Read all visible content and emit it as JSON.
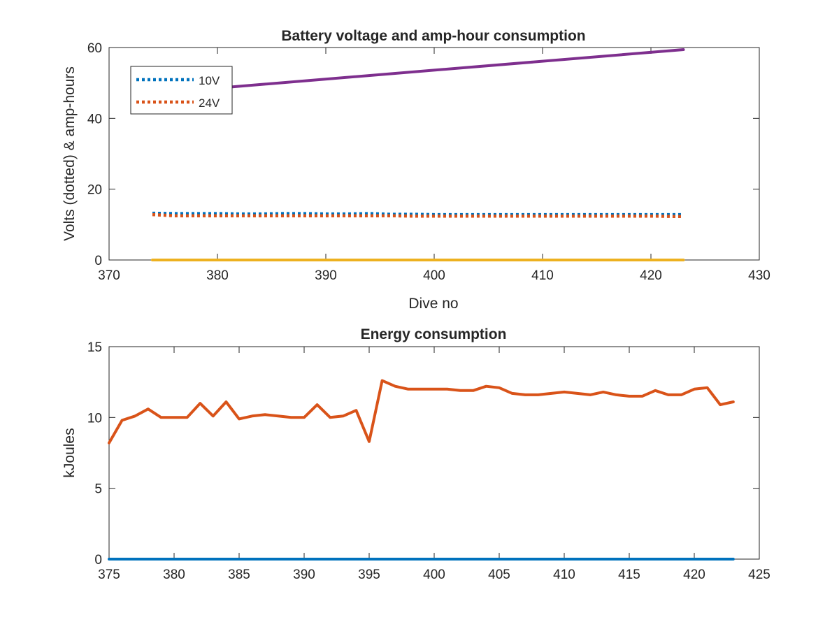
{
  "colors": {
    "blue": "#0072BD",
    "orange": "#D95319",
    "yellow": "#EDB120",
    "purple": "#7E2F8E",
    "axis": "#262626"
  },
  "chart_data": [
    {
      "type": "line",
      "title": "Battery voltage and amp-hour consumption",
      "xlabel": "Dive no",
      "ylabel": "Volts (dotted) & amp-hours",
      "xlim": [
        370,
        430
      ],
      "ylim": [
        0,
        60
      ],
      "xticks": [
        370,
        380,
        390,
        400,
        410,
        420,
        430
      ],
      "yticks": [
        0,
        20,
        40,
        60
      ],
      "grid": false,
      "legend_position": "top-left",
      "series": [
        {
          "name": "10V",
          "style": "dotted",
          "color": "#0072BD",
          "x": [
            374,
            376,
            378,
            380,
            382,
            384,
            386,
            388,
            390,
            392,
            394,
            396,
            398,
            400,
            402,
            404,
            406,
            408,
            410,
            412,
            414,
            416,
            418,
            420,
            422,
            423
          ],
          "y": [
            13.2,
            13.1,
            13.1,
            13.1,
            13.0,
            13.0,
            13.1,
            13.1,
            13.0,
            13.0,
            13.1,
            12.9,
            12.9,
            12.8,
            12.8,
            12.8,
            12.8,
            12.8,
            12.8,
            12.8,
            12.8,
            12.8,
            12.8,
            12.8,
            12.8,
            12.8
          ]
        },
        {
          "name": "24V",
          "style": "dotted",
          "color": "#D95319",
          "x": [
            374,
            376,
            378,
            380,
            382,
            384,
            386,
            388,
            390,
            392,
            394,
            396,
            398,
            400,
            402,
            404,
            406,
            408,
            410,
            412,
            414,
            416,
            418,
            420,
            422,
            423
          ],
          "y": [
            12.8,
            12.5,
            12.5,
            12.5,
            12.5,
            12.5,
            12.5,
            12.5,
            12.5,
            12.5,
            12.5,
            12.5,
            12.4,
            12.4,
            12.4,
            12.4,
            12.4,
            12.4,
            12.4,
            12.4,
            12.4,
            12.4,
            12.4,
            12.4,
            12.3,
            12.3
          ]
        },
        {
          "style": "solid",
          "color": "#EDB120",
          "x": [
            374,
            423
          ],
          "y": [
            0,
            0
          ]
        },
        {
          "style": "solid",
          "color": "#7E2F8E",
          "x": [
            381,
            423
          ],
          "y": [
            48.8,
            59.4
          ]
        }
      ]
    },
    {
      "type": "line",
      "title": "Energy consumption",
      "xlabel": "",
      "ylabel": "kJoules",
      "xlim": [
        375,
        425
      ],
      "ylim": [
        0,
        15
      ],
      "xticks": [
        375,
        380,
        385,
        390,
        395,
        400,
        405,
        410,
        415,
        420,
        425
      ],
      "yticks": [
        0,
        5,
        10,
        15
      ],
      "grid": false,
      "series": [
        {
          "style": "solid",
          "color": "#D95319",
          "x": [
            375,
            376,
            377,
            378,
            379,
            380,
            381,
            382,
            383,
            384,
            385,
            386,
            387,
            388,
            389,
            390,
            391,
            392,
            393,
            394,
            395,
            396,
            397,
            398,
            399,
            400,
            401,
            402,
            403,
            404,
            405,
            406,
            407,
            408,
            409,
            410,
            411,
            412,
            413,
            414,
            415,
            416,
            417,
            418,
            419,
            420,
            421,
            422,
            423
          ],
          "y": [
            8.2,
            9.8,
            10.1,
            10.6,
            10.0,
            10.0,
            10.0,
            11.0,
            10.1,
            11.1,
            9.9,
            10.1,
            10.2,
            10.1,
            10.0,
            10.0,
            10.9,
            10.0,
            10.1,
            10.5,
            8.3,
            12.6,
            12.2,
            12.0,
            12.0,
            12.0,
            12.0,
            11.9,
            11.9,
            12.2,
            12.1,
            11.7,
            11.6,
            11.6,
            11.7,
            11.8,
            11.7,
            11.6,
            11.8,
            11.6,
            11.5,
            11.5,
            11.9,
            11.6,
            11.6,
            12.0,
            12.1,
            10.9,
            11.1
          ]
        },
        {
          "style": "solid",
          "color": "#0072BD",
          "x": [
            375,
            423
          ],
          "y": [
            0,
            0
          ]
        }
      ]
    }
  ]
}
